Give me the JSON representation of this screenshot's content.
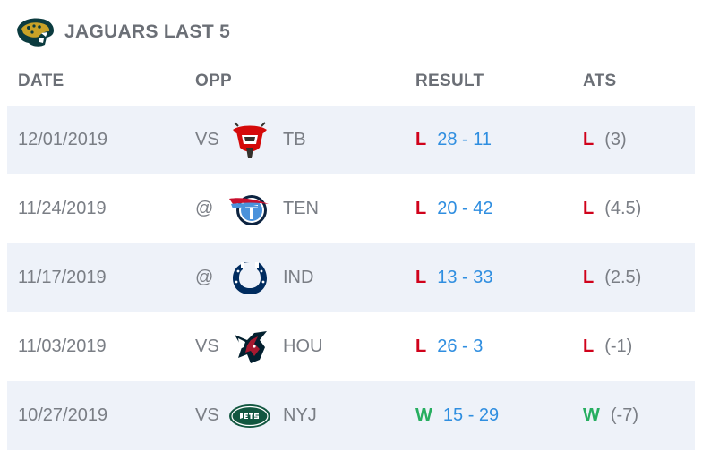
{
  "header": {
    "title": "JAGUARS LAST 5",
    "logo_icon": "jaguars-logo-icon"
  },
  "columns": {
    "date": "DATE",
    "opp": "OPP",
    "result": "RESULT",
    "ats": "ATS"
  },
  "colors": {
    "loss": "#d0021b",
    "win": "#27ae60",
    "score": "#2f8ee0",
    "row_shade": "#eef2f9"
  },
  "games": [
    {
      "date": "12/01/2019",
      "prefix": "VS",
      "team": "TB",
      "logo": "buccaneers-logo-icon",
      "wl": "L",
      "score": "28 - 11",
      "ats_wl": "L",
      "ats_line": "(3)"
    },
    {
      "date": "11/24/2019",
      "prefix": "@",
      "team": "TEN",
      "logo": "titans-logo-icon",
      "wl": "L",
      "score": "20 - 42",
      "ats_wl": "L",
      "ats_line": "(4.5)"
    },
    {
      "date": "11/17/2019",
      "prefix": "@",
      "team": "IND",
      "logo": "colts-logo-icon",
      "wl": "L",
      "score": "13 - 33",
      "ats_wl": "L",
      "ats_line": "(2.5)"
    },
    {
      "date": "11/03/2019",
      "prefix": "VS",
      "team": "HOU",
      "logo": "texans-logo-icon",
      "wl": "L",
      "score": "26 - 3",
      "ats_wl": "L",
      "ats_line": "(-1)"
    },
    {
      "date": "10/27/2019",
      "prefix": "VS",
      "team": "NYJ",
      "logo": "jets-logo-icon",
      "wl": "W",
      "score": "15 - 29",
      "ats_wl": "W",
      "ats_line": "(-7)"
    }
  ]
}
